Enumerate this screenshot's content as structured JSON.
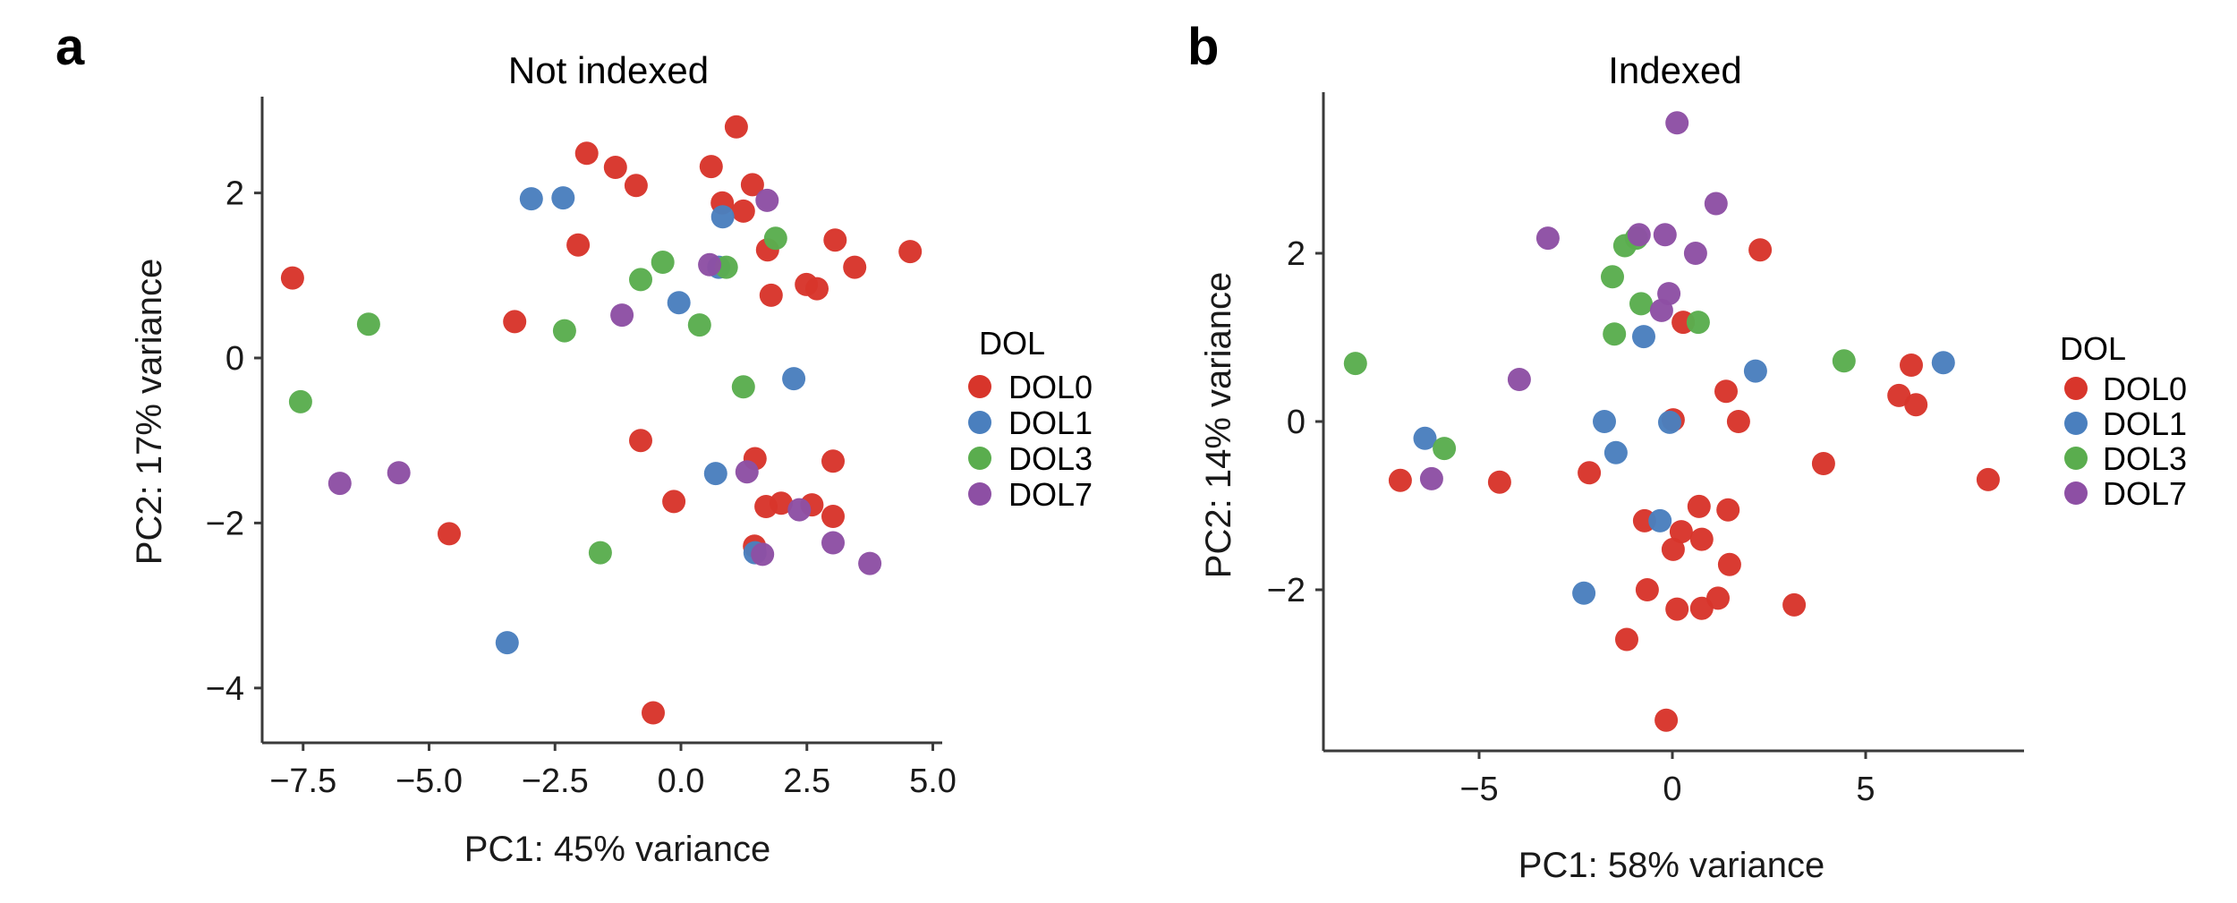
{
  "figure": {
    "panels": [
      {
        "label": "a"
      },
      {
        "label": "b"
      }
    ]
  },
  "colors": {
    "DOL0": "#d8352b",
    "DOL1": "#4a7fbe",
    "DOL3": "#5aad4e",
    "DOL7": "#8d4fa4"
  },
  "chart_data": [
    {
      "type": "scatter",
      "panel": "a",
      "title": "Not indexed",
      "xlabel": "PC1: 45% variance",
      "ylabel": "PC2: 17% variance",
      "xlim": [
        -8.2,
        5.1
      ],
      "ylim": [
        -4.6,
        3.1
      ],
      "xticks": [
        -7.5,
        -5.0,
        -2.5,
        0.0,
        2.5,
        5.0
      ],
      "xtick_labels": [
        "−7.5",
        "−5.0",
        "−2.5",
        "0.0",
        "2.5",
        "5.0"
      ],
      "yticks": [
        2,
        0,
        -2,
        -4
      ],
      "ytick_labels": [
        "2",
        "0",
        "−2",
        "−4"
      ],
      "grid": false,
      "legend": {
        "title": "DOL",
        "placement": "right",
        "entries": [
          "DOL0",
          "DOL1",
          "DOL3",
          "DOL7"
        ]
      },
      "series": [
        {
          "name": "DOL0",
          "points": [
            [
              -7.71,
              0.97
            ],
            [
              -4.6,
              -2.13
            ],
            [
              -3.3,
              0.44
            ],
            [
              -2.04,
              1.37
            ],
            [
              -1.87,
              2.48
            ],
            [
              -1.3,
              2.31
            ],
            [
              -0.89,
              2.09
            ],
            [
              -0.8,
              -1.0
            ],
            [
              -0.55,
              -4.3
            ],
            [
              -0.14,
              -1.74
            ],
            [
              0.6,
              2.32
            ],
            [
              0.82,
              1.88
            ],
            [
              1.1,
              2.8
            ],
            [
              1.24,
              1.78
            ],
            [
              1.42,
              2.1
            ],
            [
              1.72,
              1.31
            ],
            [
              1.79,
              0.76
            ],
            [
              2.49,
              0.89
            ],
            [
              2.7,
              0.84
            ],
            [
              3.06,
              1.43
            ],
            [
              3.45,
              1.1
            ],
            [
              4.55,
              1.29
            ],
            [
              1.47,
              -1.22
            ],
            [
              1.69,
              -1.8
            ],
            [
              1.99,
              -1.76
            ],
            [
              2.6,
              -1.78
            ],
            [
              3.02,
              -1.25
            ],
            [
              3.02,
              -1.92
            ],
            [
              1.46,
              -2.28
            ]
          ]
        },
        {
          "name": "DOL1",
          "points": [
            [
              -2.97,
              1.93
            ],
            [
              -2.34,
              1.94
            ],
            [
              -3.45,
              -3.45
            ],
            [
              -0.04,
              0.67
            ],
            [
              0.83,
              1.71
            ],
            [
              0.75,
              1.1
            ],
            [
              2.24,
              -0.25
            ],
            [
              0.69,
              -1.4
            ],
            [
              1.47,
              -2.36
            ]
          ]
        },
        {
          "name": "DOL3",
          "points": [
            [
              -6.2,
              0.41
            ],
            [
              -7.55,
              -0.53
            ],
            [
              -2.31,
              0.33
            ],
            [
              -0.8,
              0.95
            ],
            [
              -0.36,
              1.16
            ],
            [
              0.37,
              0.4
            ],
            [
              0.9,
              1.1
            ],
            [
              1.88,
              1.45
            ],
            [
              1.24,
              -0.35
            ],
            [
              -1.6,
              -2.36
            ]
          ]
        },
        {
          "name": "DOL7",
          "points": [
            [
              -6.77,
              -1.52
            ],
            [
              -5.6,
              -1.39
            ],
            [
              -1.17,
              0.52
            ],
            [
              0.57,
              1.13
            ],
            [
              1.71,
              1.91
            ],
            [
              1.31,
              -1.38
            ],
            [
              2.35,
              -1.84
            ],
            [
              3.02,
              -2.24
            ],
            [
              3.75,
              -2.49
            ],
            [
              1.62,
              -2.38
            ]
          ]
        }
      ]
    },
    {
      "type": "scatter",
      "panel": "b",
      "title": "Indexed",
      "xlabel": "PC1: 58% variance",
      "ylabel": "PC2: 14% variance",
      "xlim": [
        -9.0,
        9.3
      ],
      "ylim": [
        -3.9,
        3.9
      ],
      "xticks": [
        -5,
        0,
        5
      ],
      "xtick_labels": [
        "−5",
        "0",
        "5"
      ],
      "yticks": [
        2,
        0,
        -2
      ],
      "ytick_labels": [
        "2",
        "0",
        "−2"
      ],
      "grid": false,
      "legend": {
        "title": "DOL",
        "placement": "right",
        "entries": [
          "DOL0",
          "DOL1",
          "DOL3",
          "DOL7"
        ]
      },
      "series": [
        {
          "name": "DOL0",
          "points": [
            [
              -7.04,
              -0.7
            ],
            [
              -4.47,
              -0.72
            ],
            [
              -2.15,
              -0.61
            ],
            [
              2.27,
              2.04
            ],
            [
              0.28,
              1.18
            ],
            [
              0.02,
              0.02
            ],
            [
              1.39,
              0.36
            ],
            [
              1.71,
              0.0
            ],
            [
              3.91,
              -0.5
            ],
            [
              5.86,
              0.31
            ],
            [
              6.18,
              0.67
            ],
            [
              6.3,
              0.2
            ],
            [
              8.17,
              -0.69
            ],
            [
              -0.72,
              -1.18
            ],
            [
              0.69,
              -1.01
            ],
            [
              1.44,
              -1.05
            ],
            [
              0.23,
              -1.31
            ],
            [
              0.76,
              -1.4
            ],
            [
              0.02,
              -1.52
            ],
            [
              1.48,
              -1.7
            ],
            [
              -0.65,
              -2.0
            ],
            [
              0.12,
              -2.23
            ],
            [
              0.76,
              -2.22
            ],
            [
              1.18,
              -2.1
            ],
            [
              3.15,
              -2.18
            ],
            [
              -1.18,
              -2.59
            ],
            [
              -0.16,
              -3.55
            ]
          ]
        },
        {
          "name": "DOL1",
          "points": [
            [
              -6.4,
              -0.2
            ],
            [
              -1.76,
              0.0
            ],
            [
              -1.46,
              -0.37
            ],
            [
              -0.74,
              1.01
            ],
            [
              -0.07,
              -0.01
            ],
            [
              2.15,
              0.6
            ],
            [
              7.01,
              0.7
            ],
            [
              -0.32,
              -1.18
            ],
            [
              -2.29,
              -2.04
            ]
          ]
        },
        {
          "name": "DOL3",
          "points": [
            [
              -8.2,
              0.69
            ],
            [
              -5.9,
              -0.32
            ],
            [
              -1.23,
              2.09
            ],
            [
              -0.93,
              2.18
            ],
            [
              -1.55,
              1.72
            ],
            [
              -0.81,
              1.4
            ],
            [
              -1.5,
              1.04
            ],
            [
              0.67,
              1.18
            ],
            [
              4.44,
              0.72
            ]
          ]
        },
        {
          "name": "DOL7",
          "points": [
            [
              0.12,
              3.55
            ],
            [
              1.13,
              2.59
            ],
            [
              -3.22,
              2.18
            ],
            [
              -0.86,
              2.22
            ],
            [
              -0.19,
              2.22
            ],
            [
              0.6,
              2.0
            ],
            [
              -0.09,
              1.52
            ],
            [
              -0.28,
              1.32
            ],
            [
              -3.96,
              0.5
            ],
            [
              -6.23,
              -0.68
            ]
          ]
        }
      ]
    }
  ]
}
